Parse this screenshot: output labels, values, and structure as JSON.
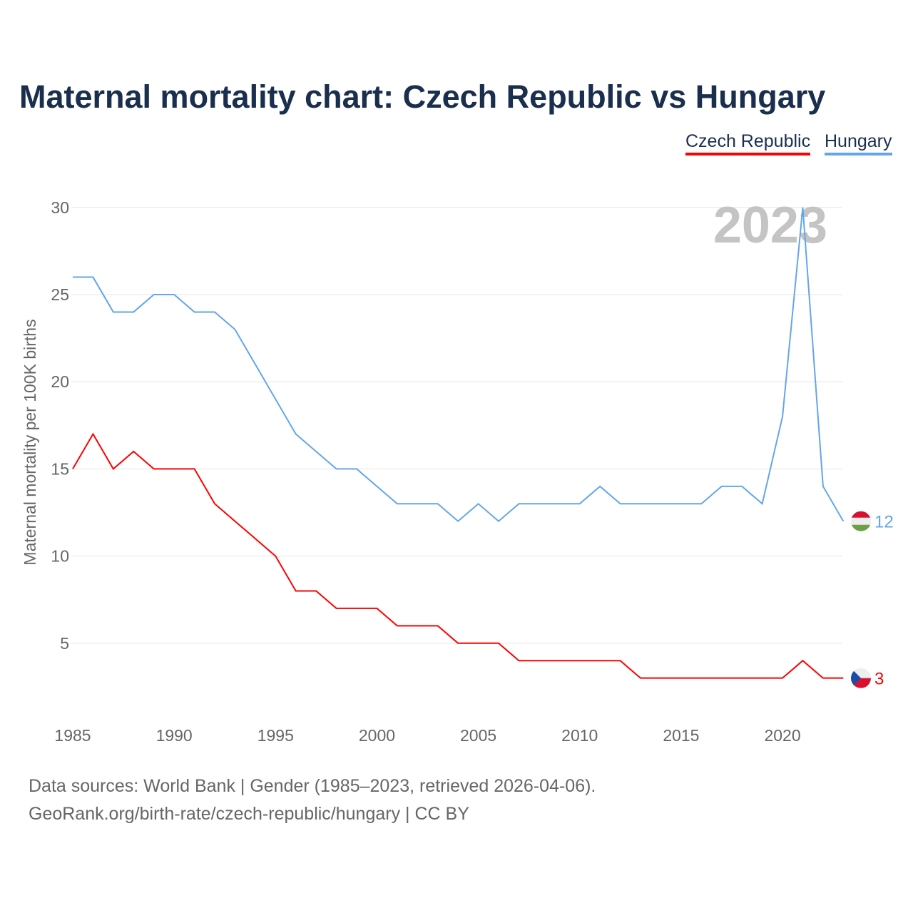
{
  "chart_data": {
    "type": "line",
    "title": "Maternal mortality chart: Czech Republic vs Hungary",
    "ylabel": "Maternal mortality per 100K births",
    "xlabel": "",
    "year_label": "2023",
    "xlim": [
      1985,
      2023
    ],
    "ylim": [
      0,
      30
    ],
    "xticks": [
      1985,
      1990,
      1995,
      2000,
      2005,
      2010,
      2015,
      2020
    ],
    "yticks": [
      5,
      10,
      15,
      20,
      25,
      30
    ],
    "grid": true,
    "legend_position": "top-right",
    "x": [
      1985,
      1986,
      1987,
      1988,
      1989,
      1990,
      1991,
      1992,
      1993,
      1994,
      1995,
      1996,
      1997,
      1998,
      1999,
      2000,
      2001,
      2002,
      2003,
      2004,
      2005,
      2006,
      2007,
      2008,
      2009,
      2010,
      2011,
      2012,
      2013,
      2014,
      2015,
      2016,
      2017,
      2018,
      2019,
      2020,
      2021,
      2022,
      2023
    ],
    "series": [
      {
        "name": "Czech Republic",
        "color": "#ff0000",
        "end_label": "3",
        "values": [
          15,
          17,
          15,
          16,
          15,
          15,
          15,
          13,
          12,
          11,
          10,
          8,
          8,
          7,
          7,
          7,
          6,
          6,
          6,
          5,
          5,
          5,
          4,
          4,
          4,
          4,
          4,
          4,
          3,
          3,
          3,
          3,
          3,
          3,
          3,
          3,
          4,
          3,
          3
        ]
      },
      {
        "name": "Hungary",
        "color": "#63a6ea",
        "end_label": "12",
        "values": [
          26,
          26,
          24,
          24,
          25,
          25,
          24,
          24,
          23,
          21,
          19,
          17,
          16,
          15,
          15,
          14,
          13,
          13,
          13,
          12,
          13,
          12,
          13,
          13,
          13,
          13,
          14,
          13,
          13,
          13,
          13,
          13,
          14,
          14,
          13,
          18,
          30,
          14,
          12
        ]
      }
    ]
  },
  "footer": {
    "sources": "Data sources: World Bank | Gender (1985–2023, retrieved 2026-04-06).",
    "credit": "GeoRank.org/birth-rate/czech-republic/hungary | CC BY"
  }
}
